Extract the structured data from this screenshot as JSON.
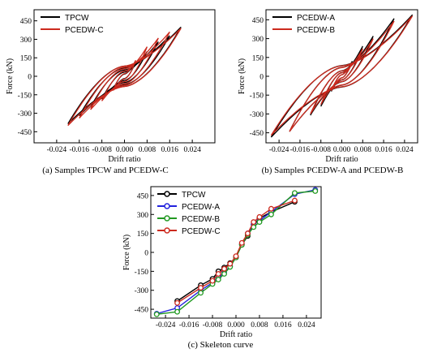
{
  "chart_data": [
    {
      "type": "line",
      "caption": "(a) Samples TPCW and PCEDW-C",
      "xlabel": "Drift ratio",
      "ylabel": "Force (kN)",
      "xlim": [
        -0.032,
        0.032
      ],
      "ylim": [
        -540,
        540
      ],
      "xticks": [
        "-0.024",
        "-0.016",
        "-0.008",
        "0.000",
        "0.008",
        "0.016",
        "0.024"
      ],
      "yticks": [
        "450",
        "300",
        "150",
        "0",
        "-150",
        "-300",
        "-450"
      ],
      "legend_position": "top-left",
      "series": [
        {
          "name": "TPCW",
          "color": "#000000",
          "loops": [
            {
              "amp": 0.004,
              "fpos": 120,
              "fneg": -110,
              "pinch": 0.45
            },
            {
              "amp": 0.008,
              "fpos": 200,
              "fneg": -185,
              "pinch": 0.5
            },
            {
              "amp": 0.012,
              "fpos": 280,
              "fneg": -250,
              "pinch": 0.55
            },
            {
              "amp": 0.016,
              "fpos": 330,
              "fneg": -320,
              "pinch": 0.6
            },
            {
              "amp": 0.02,
              "fpos": 400,
              "fneg": -385,
              "pinch": 0.6
            }
          ]
        },
        {
          "name": "PCEDW-C",
          "color": "#cc2a1e",
          "loops": [
            {
              "amp": 0.004,
              "fpos": 130,
              "fneg": -115,
              "pinch": 0.5
            },
            {
              "amp": 0.008,
              "fpos": 240,
              "fneg": -200,
              "pinch": 0.55
            },
            {
              "amp": 0.012,
              "fpos": 310,
              "fneg": -270,
              "pinch": 0.6
            },
            {
              "amp": 0.016,
              "fpos": 360,
              "fneg": -340,
              "pinch": 0.6
            },
            {
              "amp": 0.02,
              "fpos": 390,
              "fneg": -400,
              "pinch": 0.6
            }
          ]
        }
      ]
    },
    {
      "type": "line",
      "caption": "(b) Samples PCEDW-A and PCEDW-B",
      "xlabel": "Drift ratio",
      "ylabel": "Force (kN)",
      "xlim": [
        -0.029,
        0.029
      ],
      "ylim": [
        -530,
        530
      ],
      "xticks": [
        "-0.024",
        "-0.016",
        "-0.008",
        "0.000",
        "0.008",
        "0.016",
        "0.024"
      ],
      "yticks": [
        "450",
        "300",
        "150",
        "0",
        "-150",
        "-300",
        "-450"
      ],
      "legend_position": "top-left",
      "series": [
        {
          "name": "PCEDW-A",
          "color": "#000000",
          "loops": [
            {
              "amp": 0.004,
              "fpos": 120,
              "fneg": -120,
              "pinch": 0.3
            },
            {
              "amp": 0.008,
              "fpos": 240,
              "fneg": -240,
              "pinch": 0.35
            },
            {
              "amp": 0.012,
              "fpos": 320,
              "fneg": -310,
              "pinch": 0.4
            },
            {
              "amp": 0.02,
              "fpos": 460,
              "fneg": -440,
              "pinch": 0.45
            },
            {
              "amp": 0.027,
              "fpos": 490,
              "fneg": -485,
              "pinch": 0.5
            }
          ]
        },
        {
          "name": "PCEDW-B",
          "color": "#cc2a1e",
          "loops": [
            {
              "amp": 0.004,
              "fpos": 110,
              "fneg": -115,
              "pinch": 0.3
            },
            {
              "amp": 0.008,
              "fpos": 220,
              "fneg": -225,
              "pinch": 0.35
            },
            {
              "amp": 0.012,
              "fpos": 300,
              "fneg": -300,
              "pinch": 0.4
            },
            {
              "amp": 0.02,
              "fpos": 440,
              "fneg": -440,
              "pinch": 0.45
            },
            {
              "amp": 0.027,
              "fpos": 480,
              "fneg": -470,
              "pinch": 0.5
            }
          ]
        }
      ]
    },
    {
      "type": "line",
      "caption": "(c) Skeleton curve",
      "xlabel": "Drift ratio",
      "ylabel": "Force (kN)",
      "xlim": [
        -0.029,
        0.029
      ],
      "ylim": [
        -520,
        520
      ],
      "xticks": [
        "-0.024",
        "-0.016",
        "-0.008",
        "0.000",
        "0.008",
        "0.016",
        "0.024"
      ],
      "yticks": [
        "450",
        "300",
        "150",
        "0",
        "-150",
        "-300",
        "-450"
      ],
      "legend_position": "top-left",
      "series": [
        {
          "name": "TPCW",
          "color": "#000000",
          "x": [
            -0.02,
            -0.012,
            -0.008,
            -0.006,
            -0.004,
            -0.002,
            0.0,
            0.002,
            0.004,
            0.006,
            0.008,
            0.012,
            0.02
          ],
          "y": [
            -385,
            -260,
            -210,
            -150,
            -120,
            -85,
            -40,
            60,
            130,
            220,
            270,
            320,
            400
          ]
        },
        {
          "name": "PCEDW-A",
          "color": "#2222dd",
          "x": [
            -0.027,
            -0.02,
            -0.012,
            -0.008,
            -0.006,
            -0.004,
            -0.002,
            0.0,
            0.002,
            0.004,
            0.006,
            0.008,
            0.012,
            0.02,
            0.027
          ],
          "y": [
            -485,
            -440,
            -300,
            -240,
            -200,
            -160,
            -110,
            -40,
            70,
            150,
            220,
            250,
            320,
            460,
            495
          ]
        },
        {
          "name": "PCEDW-B",
          "color": "#229922",
          "x": [
            -0.027,
            -0.02,
            -0.012,
            -0.008,
            -0.006,
            -0.004,
            -0.002,
            0.0,
            0.002,
            0.004,
            0.006,
            0.008,
            0.012,
            0.02,
            0.027
          ],
          "y": [
            -490,
            -470,
            -320,
            -250,
            -215,
            -170,
            -115,
            -40,
            60,
            140,
            200,
            240,
            300,
            470,
            485
          ]
        },
        {
          "name": "PCEDW-C",
          "color": "#cc2a1e",
          "x": [
            -0.02,
            -0.012,
            -0.008,
            -0.006,
            -0.004,
            -0.002,
            0.0,
            0.002,
            0.004,
            0.006,
            0.008,
            0.012,
            0.02
          ],
          "y": [
            -400,
            -280,
            -225,
            -170,
            -130,
            -90,
            -30,
            75,
            150,
            240,
            280,
            345,
            410
          ]
        }
      ]
    }
  ]
}
